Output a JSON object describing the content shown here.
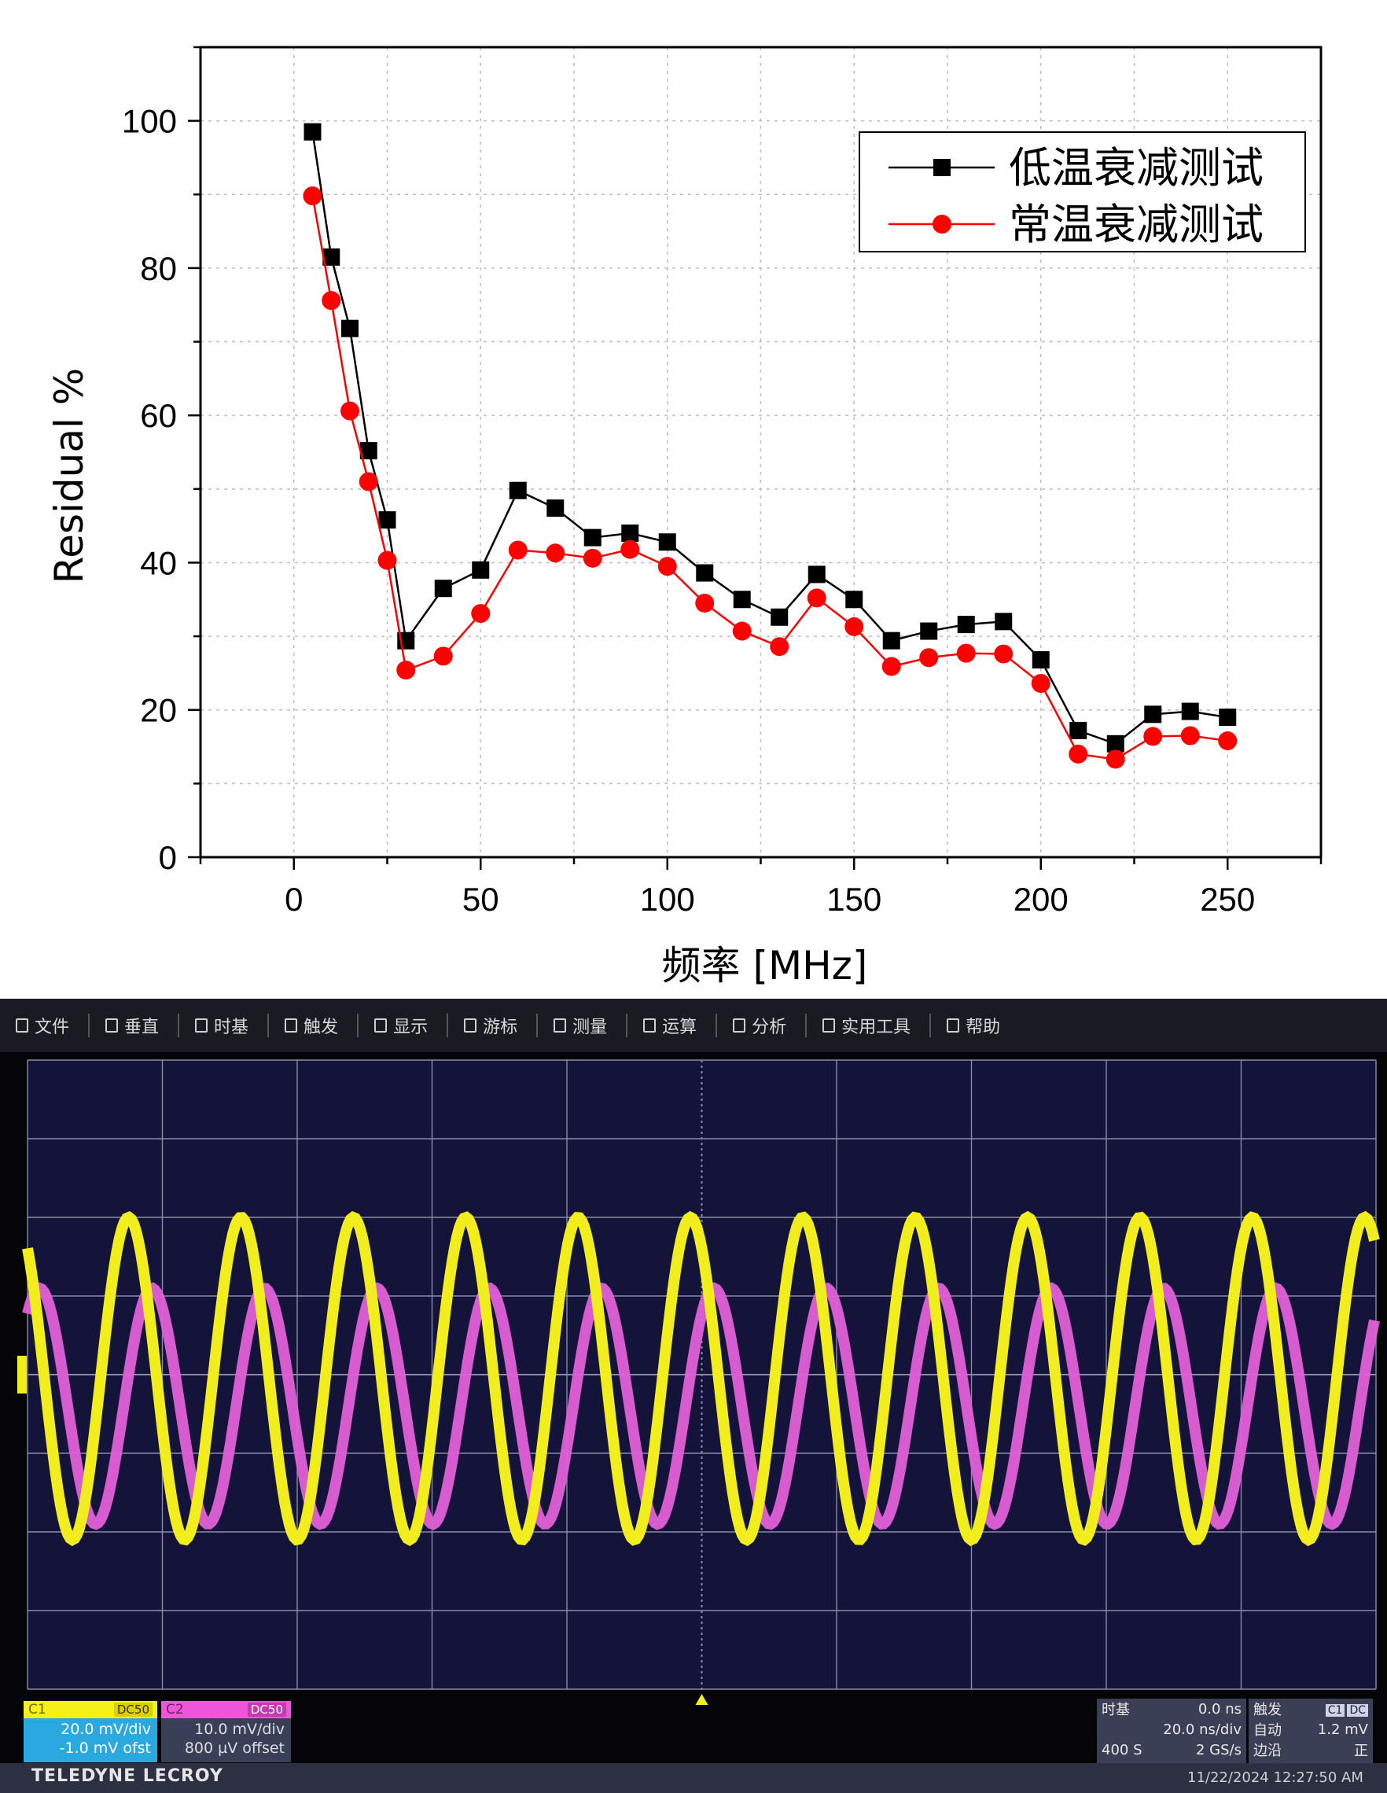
{
  "chart_data": {
    "type": "line",
    "title": "",
    "xlabel": "频率 [MHz]",
    "ylabel": "Residual %",
    "xlim": [
      -25,
      275
    ],
    "ylim": [
      0,
      110
    ],
    "x_ticks": [
      0,
      50,
      100,
      150,
      200,
      250
    ],
    "y_ticks": [
      0,
      20,
      40,
      60,
      80,
      100
    ],
    "grid": true,
    "legend_position": "top-right",
    "series": [
      {
        "name": "低温衰减测试",
        "color": "#000000",
        "marker": "square",
        "x": [
          5,
          10,
          15,
          20,
          25,
          30,
          40,
          50,
          60,
          70,
          80,
          90,
          100,
          110,
          120,
          130,
          140,
          150,
          160,
          170,
          180,
          190,
          200,
          210,
          220,
          230,
          240,
          250
        ],
        "values": [
          98.5,
          81.5,
          71.8,
          55.2,
          45.8,
          29.4,
          36.5,
          39.0,
          49.8,
          47.4,
          43.4,
          44.0,
          42.8,
          38.6,
          35.0,
          32.6,
          38.4,
          35.0,
          29.4,
          30.7,
          31.6,
          32.0,
          26.8,
          17.2,
          15.4,
          19.4,
          19.8,
          19.0
        ]
      },
      {
        "name": "常温衰减测试",
        "color": "#ff0000",
        "marker": "circle",
        "x": [
          5,
          10,
          15,
          20,
          25,
          30,
          40,
          50,
          60,
          70,
          80,
          90,
          100,
          110,
          120,
          130,
          140,
          150,
          160,
          170,
          180,
          190,
          200,
          210,
          220,
          230,
          240,
          250
        ],
        "values": [
          89.8,
          75.6,
          60.6,
          51.0,
          40.3,
          25.4,
          27.3,
          33.1,
          41.7,
          41.3,
          40.6,
          41.8,
          39.5,
          34.5,
          30.7,
          28.6,
          35.2,
          31.3,
          25.9,
          27.1,
          27.7,
          27.6,
          23.6,
          14.0,
          13.3,
          16.4,
          16.5,
          15.8
        ]
      }
    ]
  },
  "scope": {
    "menu": [
      {
        "icon": "file-icon",
        "label": "文件"
      },
      {
        "icon": "vertical-icon",
        "label": "垂直"
      },
      {
        "icon": "timebase-icon",
        "label": "时基"
      },
      {
        "icon": "trigger-icon",
        "label": "触发"
      },
      {
        "icon": "display-icon",
        "label": "显示"
      },
      {
        "icon": "cursor-icon",
        "label": "游标"
      },
      {
        "icon": "measure-icon",
        "label": "测量"
      },
      {
        "icon": "math-icon",
        "label": "运算"
      },
      {
        "icon": "analysis-icon",
        "label": "分析"
      },
      {
        "icon": "utilities-icon",
        "label": "实用工具"
      },
      {
        "icon": "help-icon",
        "label": "帮助"
      }
    ],
    "trace_colors": {
      "c1": "#f2ee1e",
      "c2": "#e060d8"
    },
    "c1": {
      "label": "C1",
      "coupling": "DC50",
      "scale": "20.0 mV/div",
      "offset": "-1.0 mV ofst"
    },
    "c2": {
      "label": "C2",
      "coupling": "DC50",
      "scale": "10.0 mV/div",
      "offset": "800 µV offset"
    },
    "timebase": {
      "title": "时基",
      "delay": "0.0 ns",
      "scale": "20.0 ns/div",
      "samples": "400 S",
      "rate": "2 GS/s"
    },
    "trigger": {
      "title": "触发",
      "tag1": "C1",
      "tag2": "DC",
      "mode": "自动",
      "level": "1.2 mV",
      "type": "边沿",
      "slope": "正"
    },
    "brand": "TELEDYNE LECROY",
    "timestamp": "11/22/2024 12:27:50 AM"
  }
}
